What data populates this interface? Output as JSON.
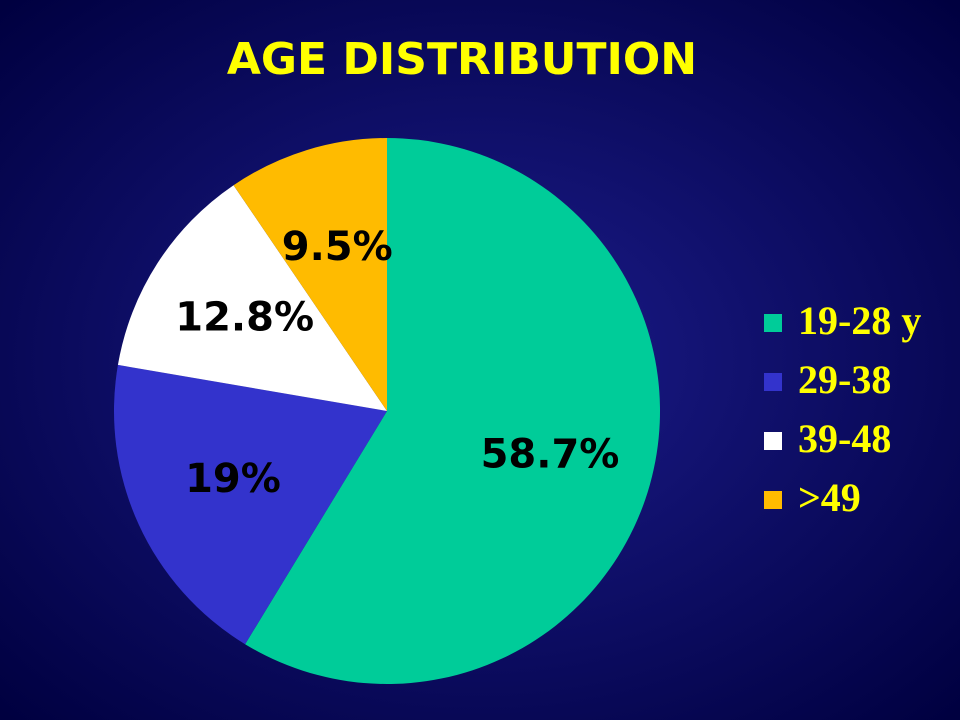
{
  "chart_data": {
    "type": "pie",
    "title": "AGE DISTRIBUTION",
    "categories": [
      "19-28 y",
      "29-38",
      "39-48",
      ">49"
    ],
    "values": [
      58.7,
      19,
      12.8,
      9.5
    ],
    "value_labels": [
      "58.7%",
      "19%",
      "12.8%",
      "9.5%"
    ],
    "colors": [
      "#00cc99",
      "#3333cc",
      "#ffffff",
      "#ffbb00"
    ],
    "legend": "right"
  }
}
